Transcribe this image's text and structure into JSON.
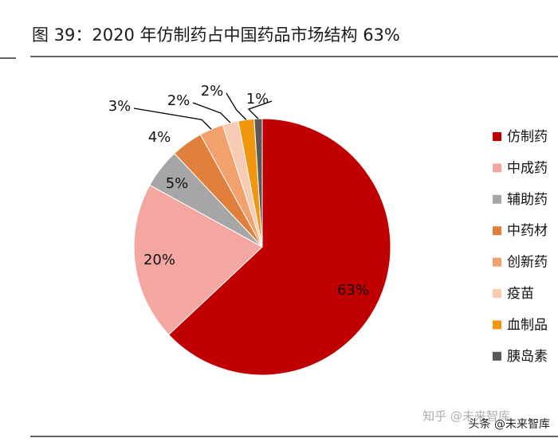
{
  "chart_data": {
    "type": "pie",
    "title": "图 39：2020 年仿制药占中国药品市场结构 63%",
    "categories": [
      "仿制药",
      "中成药",
      "辅助药",
      "中药材",
      "创新药",
      "疫苗",
      "血制品",
      "胰岛素"
    ],
    "values": [
      63,
      20,
      5,
      4,
      3,
      2,
      2,
      1
    ],
    "value_labels": [
      "63%",
      "20%",
      "5%",
      "4%",
      "3%",
      "2%",
      "2%",
      "1%"
    ],
    "colors": [
      "#c00000",
      "#f4a6a0",
      "#a6a6a6",
      "#e0803c",
      "#f2a06c",
      "#f8cbb4",
      "#f0960f",
      "#595959"
    ],
    "legend": "right"
  },
  "watermarks": [
    "知乎 @未来智库",
    "头条 @未来智库"
  ]
}
